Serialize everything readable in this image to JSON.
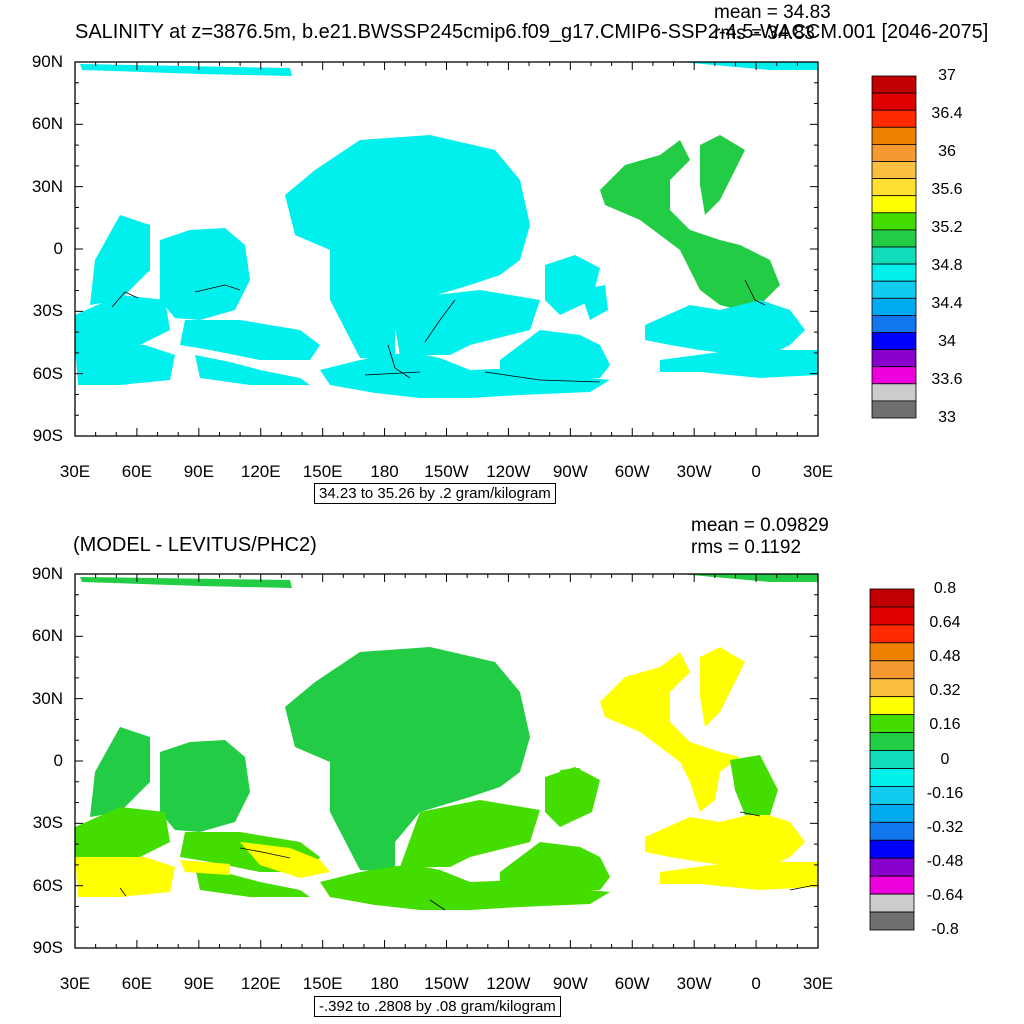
{
  "panels": [
    {
      "id": "top",
      "title": "SALINITY at z=3876.5m, b.e21.BWSSP245cmip6.f09_g17.CMIP6-SSP2-4.5-WACCM.001 [2046-2075]",
      "mean": "mean = 34.83",
      "rms": "rms = 34.83",
      "range_label": "34.23 to 35.26 by .2 gram/kilogram",
      "lat_labels": [
        "90N",
        "60N",
        "30N",
        "0",
        "30S",
        "60S",
        "90S"
      ],
      "lon_labels": [
        "30E",
        "60E",
        "90E",
        "120E",
        "150E",
        "180",
        "150W",
        "120W",
        "90W",
        "60W",
        "30W",
        "0",
        "30E"
      ],
      "colorbar_labels": [
        "37",
        "36.4",
        "36",
        "35.6",
        "35.2",
        "34.8",
        "34.4",
        "34",
        "33.6",
        "33"
      ],
      "colorbar_colors": [
        "#c00000",
        "#e00000",
        "#ff2a00",
        "#f08000",
        "#f59a30",
        "#fbbf40",
        "#ffe030",
        "#ffff00",
        "#44dd00",
        "#22cc44",
        "#11ddbb",
        "#00f0ee",
        "#11ccee",
        "#00aaee",
        "#1177ee",
        "#0000ff",
        "#8800cc",
        "#ee00dd",
        "#cccccc",
        "#707070"
      ]
    },
    {
      "id": "bottom",
      "title": "(MODEL - LEVITUS/PHC2)",
      "mean": "mean = 0.09829",
      "rms": "rms = 0.1192",
      "range_label": "-.392 to .2808 by .08 gram/kilogram",
      "lat_labels": [
        "90N",
        "60N",
        "30N",
        "0",
        "30S",
        "60S",
        "90S"
      ],
      "lon_labels": [
        "30E",
        "60E",
        "90E",
        "120E",
        "150E",
        "180",
        "150W",
        "120W",
        "90W",
        "60W",
        "30W",
        "0",
        "30E"
      ],
      "colorbar_labels": [
        "0.8",
        "0.64",
        "0.48",
        "0.32",
        "0.16",
        "0",
        "-0.16",
        "-0.32",
        "-0.48",
        "-0.64",
        "-0.8"
      ],
      "colorbar_colors": [
        "#c00000",
        "#e00000",
        "#ff2a00",
        "#f08000",
        "#f59a30",
        "#fbbf40",
        "#ffff00",
        "#44dd00",
        "#22cc44",
        "#11ddbb",
        "#00f0ee",
        "#11ccee",
        "#00aaee",
        "#1177ee",
        "#0000ff",
        "#8800cc",
        "#ee00dd",
        "#cccccc",
        "#707070"
      ]
    }
  ]
}
